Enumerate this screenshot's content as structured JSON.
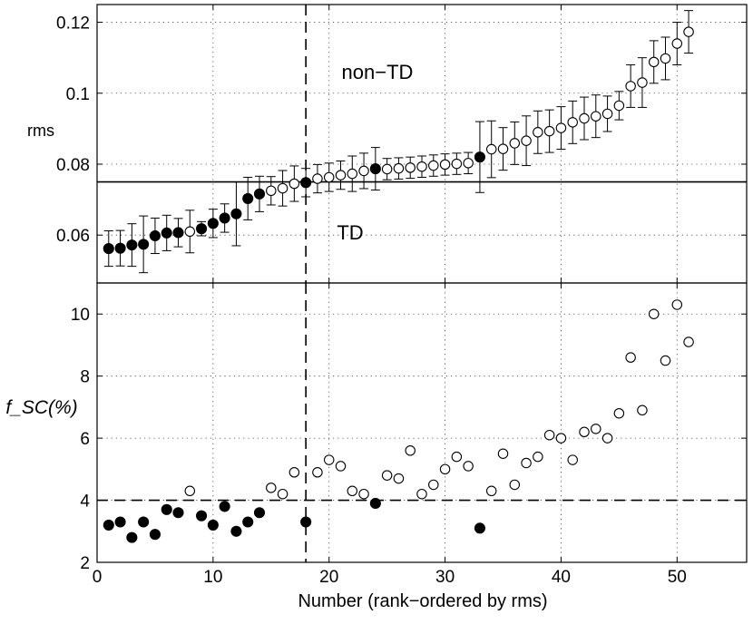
{
  "chart_data": [
    {
      "type": "scatter",
      "panel": "top",
      "title": "",
      "xlabel": "",
      "ylabel": "rms",
      "xlim": [
        0,
        56
      ],
      "ylim": [
        0.0465,
        0.125
      ],
      "xticks": [
        0,
        10,
        20,
        30,
        40,
        50
      ],
      "yticks": [
        0.06,
        0.08,
        0.1,
        0.12
      ],
      "ytick_labels": [
        "0.06",
        "0.08",
        "0.1",
        "0.12"
      ],
      "grid": true,
      "annotations": {
        "upper": "non−TD",
        "lower": "TD"
      },
      "threshold": 0.075,
      "separator_x": 18,
      "series": [
        {
          "name": "TD (filled)",
          "marker": "filled-circle",
          "x": [
            1,
            2,
            3,
            4,
            5,
            6,
            7,
            9,
            10,
            11,
            12,
            13,
            14,
            18,
            24,
            33
          ],
          "y": [
            0.0562,
            0.0563,
            0.0572,
            0.0574,
            0.0598,
            0.0606,
            0.0607,
            0.0618,
            0.0633,
            0.0648,
            0.066,
            0.0703,
            0.0716,
            0.0748,
            0.0787,
            0.082
          ],
          "err": [
            0.005,
            0.005,
            0.006,
            0.008,
            0.005,
            0.005,
            0.004,
            0.002,
            0.004,
            0.004,
            0.009,
            0.006,
            0.005,
            0.004,
            0.006,
            0.01
          ]
        },
        {
          "name": "non-TD (open)",
          "marker": "open-circle",
          "x": [
            8,
            15,
            16,
            17,
            19,
            20,
            21,
            22,
            23,
            25,
            26,
            27,
            28,
            29,
            30,
            31,
            32,
            34,
            35,
            36,
            37,
            38,
            39,
            40,
            41,
            42,
            43,
            44,
            45,
            46,
            47,
            48,
            49,
            50,
            51
          ],
          "y": [
            0.061,
            0.0725,
            0.0732,
            0.0745,
            0.0759,
            0.0763,
            0.0769,
            0.0773,
            0.0781,
            0.0786,
            0.0788,
            0.079,
            0.0793,
            0.0796,
            0.0799,
            0.0801,
            0.0803,
            0.0842,
            0.0843,
            0.0859,
            0.0866,
            0.089,
            0.0893,
            0.0902,
            0.0918,
            0.0929,
            0.0935,
            0.0942,
            0.0965,
            0.102,
            0.103,
            0.1088,
            0.1098,
            0.114,
            0.1173
          ],
          "err": [
            0.006,
            0.004,
            0.005,
            0.005,
            0.004,
            0.004,
            0.004,
            0.005,
            0.005,
            0.003,
            0.003,
            0.003,
            0.003,
            0.003,
            0.003,
            0.003,
            0.003,
            0.008,
            0.006,
            0.006,
            0.007,
            0.006,
            0.006,
            0.006,
            0.006,
            0.006,
            0.006,
            0.005,
            0.004,
            0.006,
            0.007,
            0.006,
            0.006,
            0.006,
            0.006
          ]
        }
      ]
    },
    {
      "type": "scatter",
      "panel": "bottom",
      "title": "",
      "xlabel": "Number (rank−ordered by rms)",
      "ylabel": "f_SC(%)",
      "xlim": [
        0,
        56
      ],
      "ylim": [
        2,
        11
      ],
      "xticks": [
        0,
        10,
        20,
        30,
        40,
        50
      ],
      "yticks": [
        2,
        4,
        6,
        8,
        10
      ],
      "ytick_labels": [
        "2",
        "4",
        "6",
        "8",
        "10"
      ],
      "grid": true,
      "threshold": 4,
      "separator_x": 18,
      "series": [
        {
          "name": "TD (filled)",
          "marker": "filled-circle",
          "x": [
            1,
            2,
            3,
            4,
            5,
            6,
            7,
            9,
            10,
            11,
            12,
            13,
            14,
            18,
            24,
            33
          ],
          "y": [
            3.2,
            3.3,
            2.8,
            3.3,
            2.9,
            3.7,
            3.6,
            3.5,
            3.2,
            3.8,
            3.0,
            3.3,
            3.6,
            3.3,
            3.9,
            3.1
          ]
        },
        {
          "name": "non-TD (open)",
          "marker": "open-circle",
          "x": [
            8,
            15,
            16,
            17,
            19,
            20,
            21,
            22,
            23,
            25,
            26,
            27,
            28,
            29,
            30,
            31,
            32,
            34,
            35,
            36,
            37,
            38,
            39,
            40,
            41,
            42,
            43,
            44,
            45,
            46,
            47,
            48,
            49,
            50,
            51
          ],
          "y": [
            4.3,
            4.4,
            4.2,
            4.9,
            4.9,
            5.3,
            5.1,
            4.3,
            4.2,
            4.8,
            4.7,
            5.6,
            4.2,
            4.5,
            5.0,
            5.4,
            5.1,
            4.3,
            5.5,
            4.5,
            5.2,
            5.4,
            6.1,
            6.0,
            5.3,
            6.2,
            6.3,
            6.0,
            6.8,
            8.6,
            6.9,
            10.0,
            8.5,
            10.3,
            9.1
          ]
        }
      ]
    }
  ]
}
